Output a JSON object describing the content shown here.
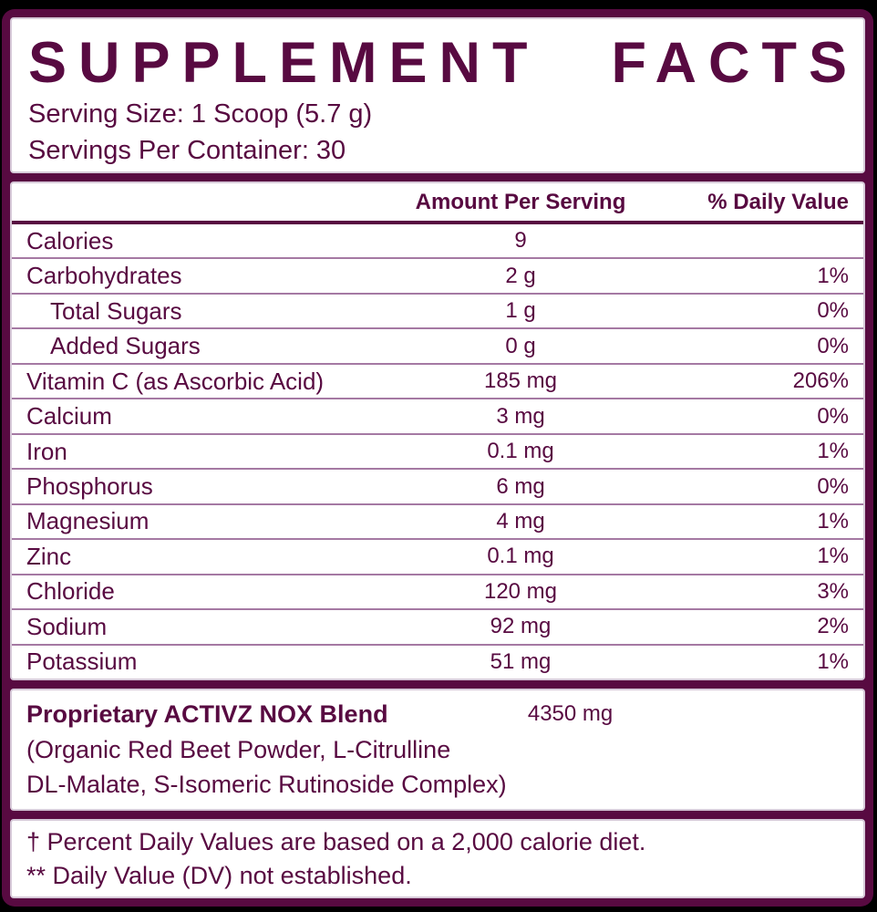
{
  "label": {
    "title": "SUPPLEMENT FACTS",
    "serving_size": "Serving Size: 1 Scoop (5.7 g)",
    "servings_per_container": "Servings Per Container: 30",
    "columns": {
      "amount": "Amount Per Serving",
      "dv": "% Daily Value"
    },
    "nutrients": [
      {
        "name": "Calories",
        "amount": "9",
        "dv": "",
        "indent": false
      },
      {
        "name": "Carbohydrates",
        "amount": "2 g",
        "dv": "1%",
        "indent": false
      },
      {
        "name": "Total Sugars",
        "amount": "1 g",
        "dv": "0%",
        "indent": true
      },
      {
        "name": "Added Sugars",
        "amount": "0 g",
        "dv": "0%",
        "indent": true
      },
      {
        "name": "Vitamin C (as Ascorbic Acid)",
        "amount": "185 mg",
        "dv": "206%",
        "indent": false
      },
      {
        "name": "Calcium",
        "amount": "3 mg",
        "dv": "0%",
        "indent": false
      },
      {
        "name": "Iron",
        "amount": "0.1 mg",
        "dv": "1%",
        "indent": false
      },
      {
        "name": "Phosphorus",
        "amount": "6 mg",
        "dv": "0%",
        "indent": false
      },
      {
        "name": "Magnesium",
        "amount": "4 mg",
        "dv": "1%",
        "indent": false
      },
      {
        "name": "Zinc",
        "amount": "0.1 mg",
        "dv": "1%",
        "indent": false
      },
      {
        "name": "Chloride",
        "amount": "120 mg",
        "dv": "3%",
        "indent": false
      },
      {
        "name": "Sodium",
        "amount": "92 mg",
        "dv": "2%",
        "indent": false
      },
      {
        "name": "Potassium",
        "amount": "51 mg",
        "dv": "1%",
        "indent": false
      }
    ],
    "blend": {
      "name": "Proprietary ACTIVZ NOX Blend",
      "amount": "4350 mg",
      "dv": "**",
      "ingredients_line1": "(Organic Red Beet Powder, L-Citrulline",
      "ingredients_line2": "DL-Malate, S-Isomeric Rutinoside Complex)"
    },
    "footnotes": [
      "† Percent Daily Values are based on a 2,000 calorie diet.",
      "** Daily Value (DV) not established."
    ],
    "colors": {
      "plum": "#580a41",
      "row_divider": "#a579a3",
      "panel_stroke": "#d6c9d8",
      "background": "#000000",
      "panel": "#ffffff"
    }
  }
}
